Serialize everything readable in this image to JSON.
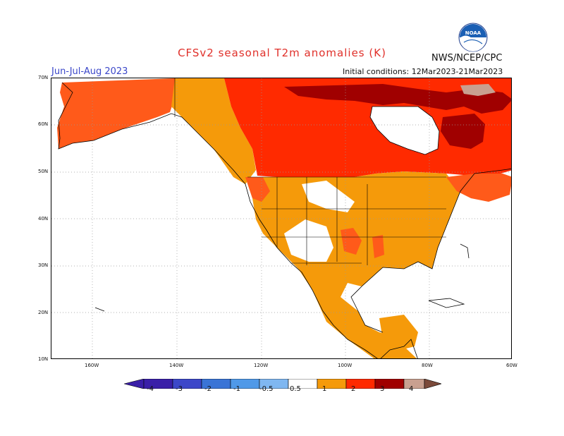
{
  "header": {
    "title": "CFSv2 seasonal T2m anomalies (K)",
    "org": "NWS/NCEP/CPC",
    "season": "Jun-Jul-Aug 2023",
    "initial_conditions": "Initial conditions: 12Mar2023-21Mar2023"
  },
  "logo": {
    "text": "NOAA"
  },
  "map": {
    "lat_labels": [
      "70N",
      "60N",
      "50N",
      "40N",
      "30N",
      "20N",
      "10N"
    ],
    "lon_labels": [
      "160W",
      "140W",
      "120W",
      "100W",
      "80W",
      "60W"
    ]
  },
  "colorbar": {
    "labels": [
      "-4",
      "-3",
      "-2",
      "-1",
      "-0.5",
      "0.5",
      "1",
      "2",
      "3",
      "4"
    ],
    "colors": [
      "#3a1fa8",
      "#3c47c9",
      "#3a74d6",
      "#4f99e8",
      "#7fb7f1",
      "#ffffff",
      "#f59a0a",
      "#ff5a1a",
      "#ff2a00",
      "#a00000",
      "#c9a090",
      "#7b4a3a"
    ]
  }
}
